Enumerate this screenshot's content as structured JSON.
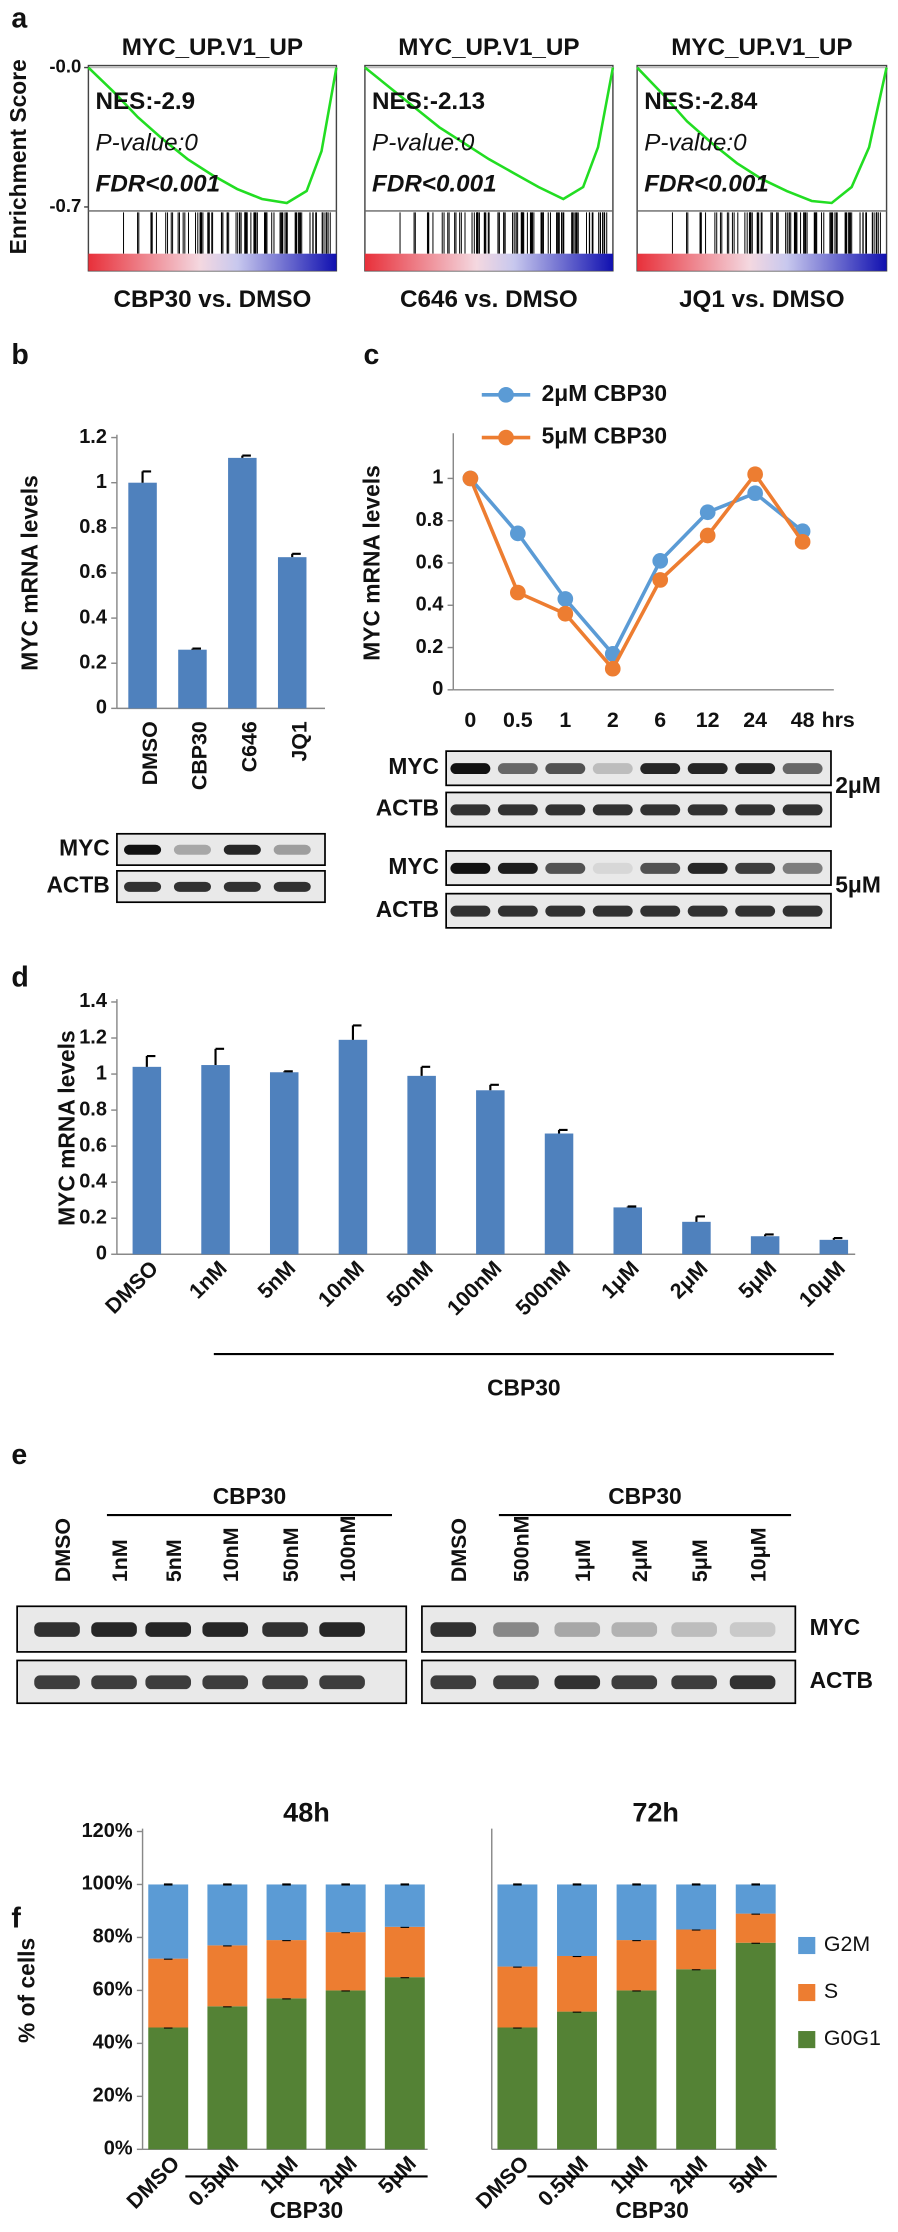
{
  "figure": {
    "panel_labels": [
      "a",
      "b",
      "c",
      "d",
      "e",
      "f"
    ]
  },
  "chart_data": [
    {
      "type": "gsea",
      "title": "MYC_UP.V1_UP",
      "ylabel": "Enrichment Score",
      "annotations": [
        "NES:-2.9",
        "P-value:0",
        "FDR<0.001"
      ],
      "xlabel": "CBP30 vs. DMSO",
      "x": [
        0,
        10,
        20,
        30,
        40,
        50,
        60,
        70,
        80,
        88,
        94,
        100
      ],
      "values": [
        0,
        -0.12,
        -0.25,
        -0.36,
        -0.46,
        -0.54,
        -0.61,
        -0.66,
        -0.68,
        -0.62,
        -0.42,
        0
      ],
      "color": "#22dd22",
      "xlim": [
        0,
        100
      ],
      "ylim": [
        -0.72,
        0.01
      ],
      "yticks": [
        {
          "value": 0,
          "label": "-0.0"
        },
        -0.7
      ]
    },
    {
      "type": "gsea",
      "title": "MYC_UP.V1_UP",
      "annotations": [
        "NES:-2.13",
        "P-value:0",
        "FDR<0.001"
      ],
      "xlabel": "C646 vs. DMSO",
      "x": [
        0,
        10,
        20,
        30,
        40,
        50,
        60,
        70,
        80,
        88,
        94,
        100
      ],
      "values": [
        0,
        -0.1,
        -0.2,
        -0.3,
        -0.38,
        -0.46,
        -0.53,
        -0.6,
        -0.66,
        -0.6,
        -0.4,
        0
      ],
      "color": "#22dd22",
      "xlim": [
        0,
        100
      ],
      "ylim": [
        -0.72,
        0.01
      ]
    },
    {
      "type": "gsea",
      "title": "MYC_UP.V1_UP",
      "annotations": [
        "NES:-2.84",
        "P-value:0",
        "FDR<0.001"
      ],
      "xlabel": "JQ1 vs. DMSO",
      "x": [
        0,
        10,
        20,
        30,
        40,
        50,
        60,
        70,
        78,
        86,
        93,
        100
      ],
      "values": [
        0,
        -0.13,
        -0.27,
        -0.38,
        -0.48,
        -0.56,
        -0.62,
        -0.67,
        -0.68,
        -0.6,
        -0.4,
        0
      ],
      "color": "#22dd22",
      "xlim": [
        0,
        100
      ],
      "ylim": [
        -0.72,
        0.01
      ]
    },
    {
      "type": "bar",
      "ylabel": "MYC mRNA levels",
      "categories": [
        "DMSO",
        "CBP30",
        "C646",
        "JQ1"
      ],
      "values": [
        1.0,
        0.26,
        1.11,
        0.67
      ],
      "errors": [
        0.05,
        0.005,
        0.01,
        0.015
      ],
      "color": "#4f81bd",
      "ylim": [
        0,
        1.2
      ],
      "yticks": [
        0,
        0.2,
        0.4,
        0.6,
        0.8,
        1,
        1.2
      ]
    },
    {
      "type": "line",
      "ylabel": "MYC mRNA levels",
      "categories": [
        "0",
        "0.5",
        "1",
        "2",
        "6",
        "12",
        "24",
        "48"
      ],
      "xunit": "hrs",
      "series": [
        {
          "name": "2μM CBP30",
          "color": "#5b9bd5",
          "values": [
            1,
            0.74,
            0.43,
            0.17,
            0.61,
            0.84,
            0.93,
            0.75
          ]
        },
        {
          "name": "5μM CBP30",
          "color": "#ed7d31",
          "values": [
            1,
            0.46,
            0.36,
            0.1,
            0.52,
            0.73,
            1.02,
            0.7
          ]
        }
      ],
      "ylim": [
        0,
        1.2
      ],
      "yticks": [
        0,
        0.2,
        0.4,
        0.6,
        0.8,
        1
      ],
      "legend": "top"
    },
    {
      "type": "bar",
      "ylabel": "MYC mRNA levels",
      "categories": [
        "DMSO",
        "1nM",
        "5nM",
        "10nM",
        "50nM",
        "100nM",
        "500nM",
        "1μM",
        "2μM",
        "5μM",
        "10μM"
      ],
      "values": [
        1.04,
        1.05,
        1.01,
        1.19,
        0.99,
        0.91,
        0.67,
        0.26,
        0.18,
        0.1,
        0.08
      ],
      "errors": [
        0.06,
        0.09,
        0.005,
        0.08,
        0.05,
        0.03,
        0.02,
        0.005,
        0.03,
        0.01,
        0.01
      ],
      "color": "#4f81bd",
      "ylim": [
        0,
        1.4
      ],
      "yticks": [
        0,
        0.2,
        0.4,
        0.6,
        0.8,
        1,
        1.2,
        1.4
      ],
      "group_label": "CBP30"
    },
    {
      "type": "stacked_bar",
      "title": "48h",
      "ylabel": "% of cells",
      "categories": [
        "DMSO",
        "0.5μM",
        "1μM",
        "2μM",
        "5μM"
      ],
      "series": [
        {
          "name": "G0G1",
          "color": "#548235",
          "values": [
            46,
            54,
            57,
            60,
            65
          ]
        },
        {
          "name": "S",
          "color": "#ed7d31",
          "values": [
            26,
            23,
            22,
            22,
            19
          ]
        },
        {
          "name": "G2M",
          "color": "#5b9bd5",
          "values": [
            28,
            23,
            21,
            18,
            16
          ]
        }
      ],
      "ylim": [
        0,
        120
      ],
      "yticks": [
        {
          "value": 0,
          "label": "0%"
        },
        {
          "value": 20,
          "label": "20%"
        },
        {
          "value": 40,
          "label": "40%"
        },
        {
          "value": 60,
          "label": "60%"
        },
        {
          "value": 80,
          "label": "80%"
        },
        {
          "value": 100,
          "label": "100%"
        },
        {
          "value": 120,
          "label": "120%"
        }
      ],
      "group_label": "CBP30"
    },
    {
      "type": "stacked_bar",
      "title": "72h",
      "categories": [
        "DMSO",
        "0.5μM",
        "1μM",
        "2μM",
        "5μM"
      ],
      "series": [
        {
          "name": "G0G1",
          "color": "#548235",
          "values": [
            46,
            52,
            60,
            68,
            78
          ]
        },
        {
          "name": "S",
          "color": "#ed7d31",
          "values": [
            23,
            21,
            19,
            15,
            11
          ]
        },
        {
          "name": "G2M",
          "color": "#5b9bd5",
          "values": [
            31,
            27,
            21,
            17,
            11
          ]
        }
      ],
      "ylim": [
        0,
        120
      ],
      "group_label": "CBP30",
      "legend": "right"
    }
  ],
  "blot_b": {
    "rows": [
      "MYC",
      "ACTB"
    ]
  },
  "blot_c": {
    "rows": [
      "MYC",
      "ACTB",
      "MYC",
      "ACTB"
    ],
    "doses": [
      "2μM",
      "5μM"
    ]
  },
  "blot_e": {
    "groups": [
      "CBP30",
      "CBP30"
    ],
    "lanes_left": [
      "DMSO",
      "1nM",
      "5nM",
      "10nM",
      "50nM",
      "100nM"
    ],
    "lanes_right": [
      "DMSO",
      "500nM",
      "1μM",
      "2μM",
      "5μM",
      "10μM"
    ],
    "rows": [
      "MYC",
      "ACTB"
    ]
  }
}
